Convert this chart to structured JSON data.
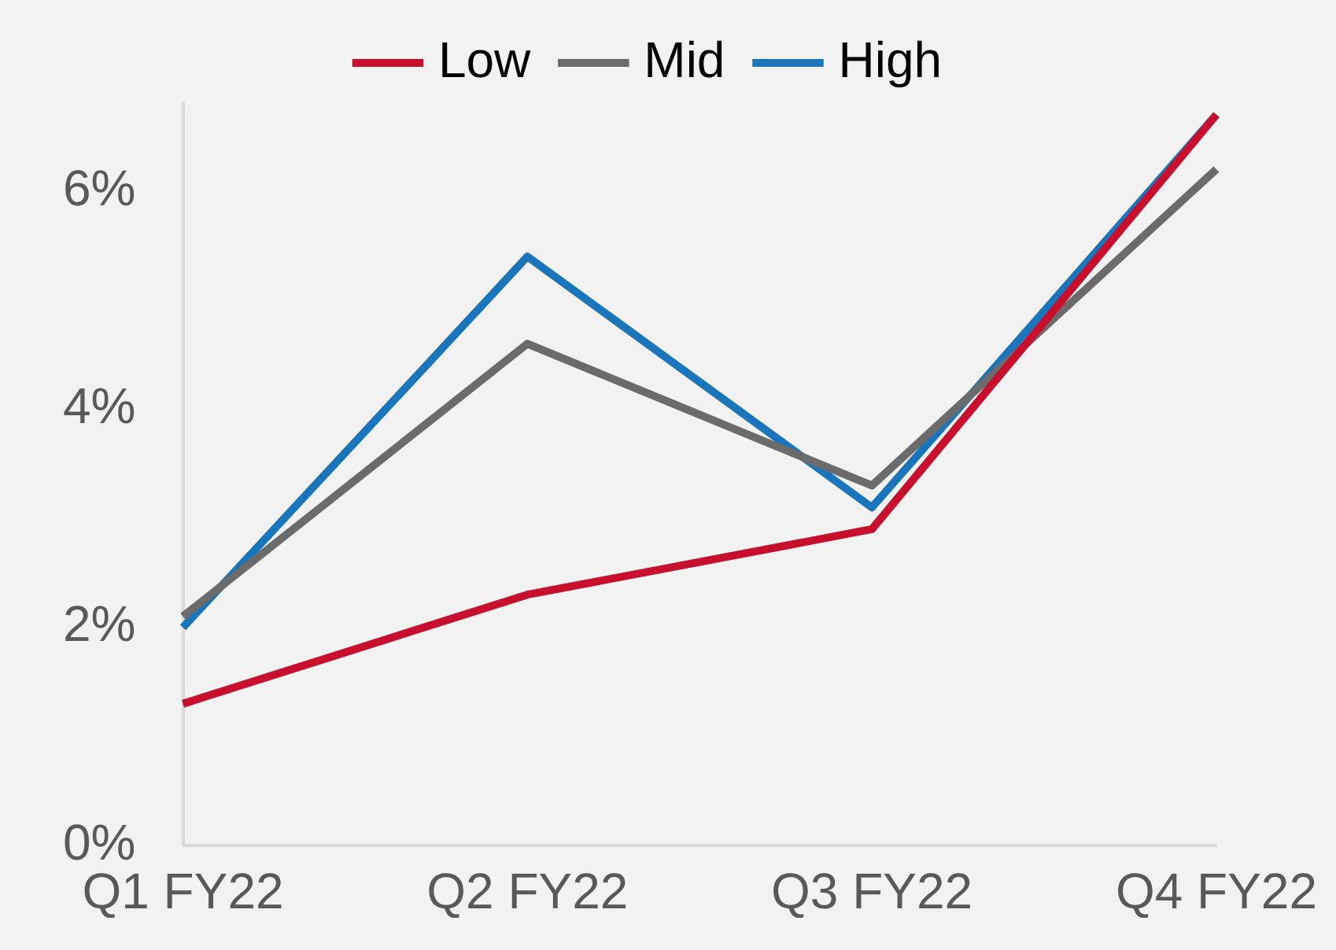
{
  "chart_data": {
    "type": "line",
    "categories": [
      "Q1 FY22",
      "Q2 FY22",
      "Q3 FY22",
      "Q4 FY22"
    ],
    "series": [
      {
        "name": "Low",
        "color": "#c8102e",
        "values": [
          1.3,
          2.3,
          2.9,
          6.7
        ]
      },
      {
        "name": "Mid",
        "color": "#6b6b6b",
        "values": [
          2.1,
          4.6,
          3.3,
          6.2
        ]
      },
      {
        "name": "High",
        "color": "#1a75bb",
        "values": [
          2.0,
          5.4,
          3.1,
          6.7
        ]
      }
    ],
    "ylim": [
      0,
      6.8
    ],
    "yticks": [
      {
        "value": 0,
        "label": "0%"
      },
      {
        "value": 2,
        "label": "2%"
      },
      {
        "value": 4,
        "label": "4%"
      },
      {
        "value": 6,
        "label": "6%"
      }
    ],
    "grid": false,
    "legend": "top",
    "marker": "none",
    "line_style": "solid"
  }
}
